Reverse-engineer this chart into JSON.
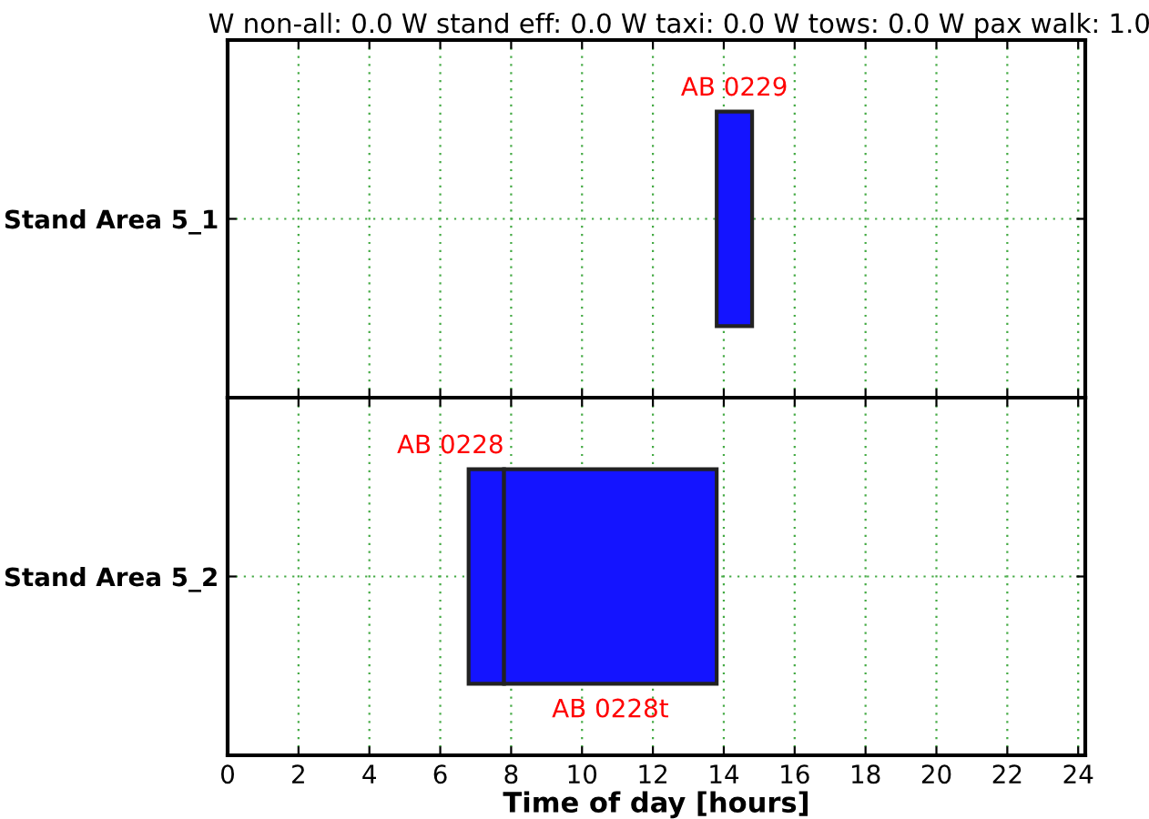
{
  "chart_data": [
    {
      "type": "bar",
      "orientation": "horizontal",
      "title": "W non-all: 0.0 W stand eff: 0.0 W taxi: 0.0 W tows: 0.0 W pax walk: 1.0",
      "categories": [
        "Stand Area 5_1"
      ],
      "series": [
        {
          "name": "AB 0229",
          "color": "#1414ff",
          "values": [
            1.0
          ],
          "base": [
            13.8
          ]
        }
      ],
      "xlim": [
        0,
        24.2
      ],
      "xticks": [
        0,
        2,
        4,
        6,
        8,
        10,
        12,
        14,
        16,
        18,
        20,
        22,
        24
      ],
      "tick_labels": "y",
      "grid": true
    },
    {
      "type": "bar",
      "orientation": "horizontal",
      "xlabel": "Time of day [hours]",
      "categories": [
        "Stand Area 5_2"
      ],
      "series": [
        {
          "name": "AB 0228",
          "color": "#1414ff",
          "values": [
            1.0
          ],
          "base": [
            6.8
          ]
        },
        {
          "name": "AB 0228t",
          "color": "#1414ff",
          "values": [
            6.0
          ],
          "base": [
            7.8
          ]
        }
      ],
      "xlim": [
        0,
        24.2
      ],
      "xticks": [
        0,
        2,
        4,
        6,
        8,
        10,
        12,
        14,
        16,
        18,
        20,
        22,
        24
      ],
      "grid": true
    }
  ]
}
